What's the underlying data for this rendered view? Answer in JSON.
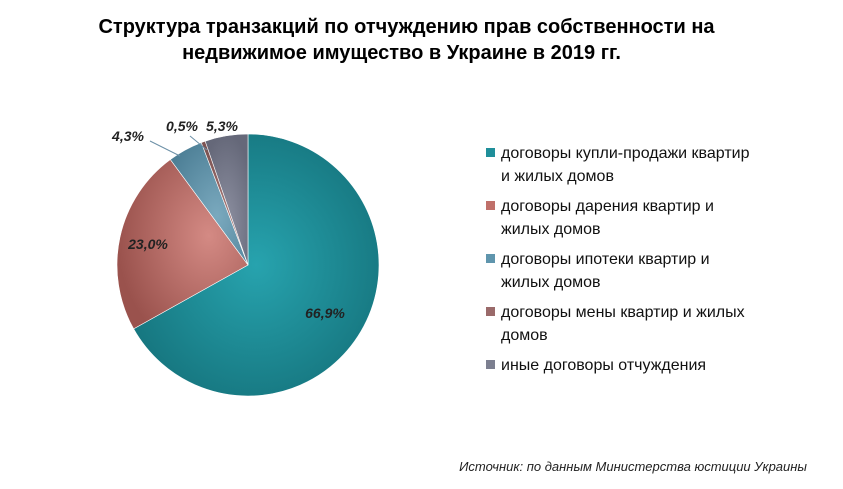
{
  "title": {
    "line1": "Структура  транзакций  по отчуждению  прав собственности  на",
    "line2": "недвижимое  имущество  в Украине  в 2019 гг."
  },
  "source": "Источник: по данным Министерства юстиции Украины",
  "chart_data": {
    "type": "pie",
    "title": "Структура транзакций по отчуждению прав собственности на недвижимое имущество в Украине в 2019 гг.",
    "legend_position": "right",
    "slices": [
      {
        "label": "договоры купли-продажи квартир и жилых домов",
        "value": 66.9,
        "display": "66,9%",
        "color": "#1f8f9a"
      },
      {
        "label": "договоры дарения квартир и жилых домов",
        "value": 23.0,
        "display": "23,0%",
        "color": "#c0706a"
      },
      {
        "label": "договоры ипотеки квартир и жилых домов",
        "value": 4.3,
        "display": "4,3%",
        "color": "#5f95ad"
      },
      {
        "label": "договоры мены квартир и жилых домов",
        "value": 0.5,
        "display": "0,5%",
        "color": "#9a6a6a"
      },
      {
        "label": "иные договоры отчуждения",
        "value": 5.3,
        "display": "5,3%",
        "color": "#7c7f90"
      }
    ]
  }
}
